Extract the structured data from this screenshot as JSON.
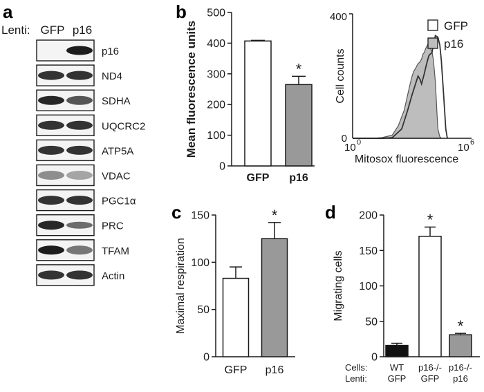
{
  "panels": {
    "a": "a",
    "b": "b",
    "c": "c",
    "d": "d"
  },
  "western_blot": {
    "lenti_label": "Lenti:",
    "lanes": [
      "GFP",
      "p16"
    ],
    "proteins": [
      "p16",
      "ND4",
      "SDHA",
      "UQCRC2",
      "ATP5A",
      "VDAC",
      "PGC1α",
      "PRC",
      "TFAM",
      "Actin"
    ]
  },
  "chart_data": [
    {
      "id": "b-bar",
      "type": "bar",
      "categories": [
        "GFP",
        "p16"
      ],
      "values": [
        407,
        265
      ],
      "errors": [
        2,
        27
      ],
      "fills": [
        "#ffffff",
        "#999999"
      ],
      "significance": [
        "",
        "*"
      ],
      "xlabel": "",
      "ylabel": "Mean fluorescence units",
      "ylim": [
        0,
        500
      ],
      "yticks": [
        0,
        100,
        200,
        300,
        400,
        500
      ]
    },
    {
      "id": "b-histogram",
      "type": "area",
      "ylabel": "Cell counts",
      "xlabel": "Mitosox fluorescence",
      "xscale": "log",
      "xlim": [
        1,
        1000000
      ],
      "ylim": [
        0,
        400
      ],
      "xtick_labels": [
        "10",
        "0",
        "10",
        "6"
      ],
      "ytick_labels": [
        "0",
        "400"
      ],
      "legend": [
        "GFP",
        "p16"
      ],
      "legend_fills": [
        "#ffffff",
        "#bdbdbd"
      ],
      "series": [
        {
          "name": "p16",
          "x": [
            1,
            3,
            10,
            30,
            100,
            200,
            400,
            600,
            800,
            1000,
            1200,
            1500,
            2000,
            2500,
            3000,
            3500,
            4000,
            5000,
            6000,
            8000,
            10000,
            12000,
            15000,
            18000,
            20000,
            25000,
            30000
          ],
          "y": [
            0,
            0,
            0,
            2,
            10,
            40,
            90,
            140,
            175,
            200,
            215,
            225,
            240,
            245,
            255,
            270,
            275,
            290,
            300,
            290,
            280,
            250,
            180,
            80,
            30,
            5,
            0
          ]
        },
        {
          "name": "GFP",
          "x": [
            1,
            3,
            10,
            30,
            100,
            300,
            600,
            1000,
            1500,
            2000,
            2500,
            3000,
            4000,
            5000,
            6000,
            7000,
            8000,
            10000,
            12000,
            15000,
            20000,
            25000,
            30000,
            40000,
            50000,
            60000
          ],
          "y": [
            0,
            0,
            0,
            0,
            2,
            30,
            90,
            140,
            175,
            200,
            190,
            175,
            205,
            230,
            250,
            265,
            270,
            275,
            300,
            330,
            325,
            300,
            250,
            130,
            30,
            0
          ]
        }
      ]
    },
    {
      "id": "c-bar",
      "type": "bar",
      "categories": [
        "GFP",
        "p16"
      ],
      "values": [
        83,
        125
      ],
      "errors": [
        12,
        17
      ],
      "fills": [
        "#ffffff",
        "#999999"
      ],
      "significance": [
        "",
        "*"
      ],
      "xlabel": "",
      "ylabel": "Maximal respiration",
      "ylim": [
        0,
        150
      ],
      "yticks": [
        0,
        50,
        100,
        150
      ]
    },
    {
      "id": "d-bar",
      "type": "bar",
      "categories": [
        "WT GFP",
        "p16-/- GFP",
        "p16-/- p16"
      ],
      "cells": [
        "WT",
        "p16-/-",
        "p16-/-"
      ],
      "lenti": [
        "GFP",
        "GFP",
        "p16"
      ],
      "row_labels": [
        "Cells:",
        "Lenti:"
      ],
      "values": [
        16,
        170,
        31
      ],
      "errors": [
        3,
        13,
        2
      ],
      "fills": [
        "#111111",
        "#ffffff",
        "#999999"
      ],
      "significance": [
        "",
        "*",
        "*"
      ],
      "xlabel": "",
      "ylabel": "Migrating cells",
      "ylim": [
        0,
        200
      ],
      "yticks": [
        0,
        50,
        100,
        150,
        200
      ]
    }
  ]
}
